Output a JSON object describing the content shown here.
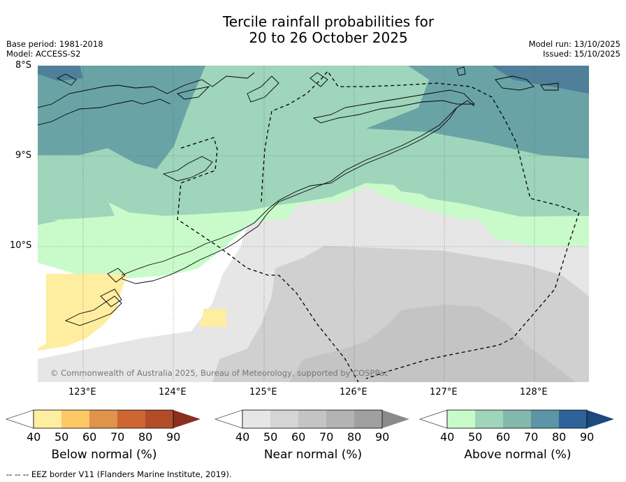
{
  "title": {
    "line1": "Tercile rainfall probabilities for",
    "line2": "20 to 26 October 2025"
  },
  "meta": {
    "base_period": "Base period: 1981-2018",
    "model": "Model: ACCESS-S2",
    "model_run": "Model run: 13/10/2025",
    "issued": "Issued: 15/10/2025"
  },
  "map": {
    "lat_labels": [
      "8°S",
      "9°S",
      "10°S"
    ],
    "lon_labels": [
      "123°E",
      "124°E",
      "125°E",
      "126°E",
      "127°E",
      "128°E"
    ],
    "copyright": "© Commonwealth of Australia 2025, Bureau of Meteorology, supported by COSPPac"
  },
  "colorbars": [
    {
      "title": "Below normal (%)",
      "ticks": [
        "40",
        "50",
        "60",
        "70",
        "80",
        "90"
      ],
      "colors": [
        "#ffffff",
        "#ffeda0",
        "#fdc865",
        "#e0934a",
        "#ce6634",
        "#b34c28",
        "#8a2f1f"
      ]
    },
    {
      "title": "Near normal (%)",
      "ticks": [
        "40",
        "50",
        "60",
        "70",
        "80",
        "90"
      ],
      "colors": [
        "#ffffff",
        "#e6e6e6",
        "#d5d5d5",
        "#c4c4c4",
        "#b3b3b3",
        "#a0a0a0",
        "#8a8a8a"
      ]
    },
    {
      "title": "Above normal (%)",
      "ticks": [
        "40",
        "50",
        "60",
        "70",
        "80",
        "90"
      ],
      "colors": [
        "#ffffff",
        "#c9fbca",
        "#9fd5ba",
        "#84b8ad",
        "#5b95a6",
        "#2f6298",
        "#1c4a7a"
      ]
    }
  ],
  "footnote": "--  --  -- EEZ border V11 (Flanders Marine Institute, 2019)."
}
